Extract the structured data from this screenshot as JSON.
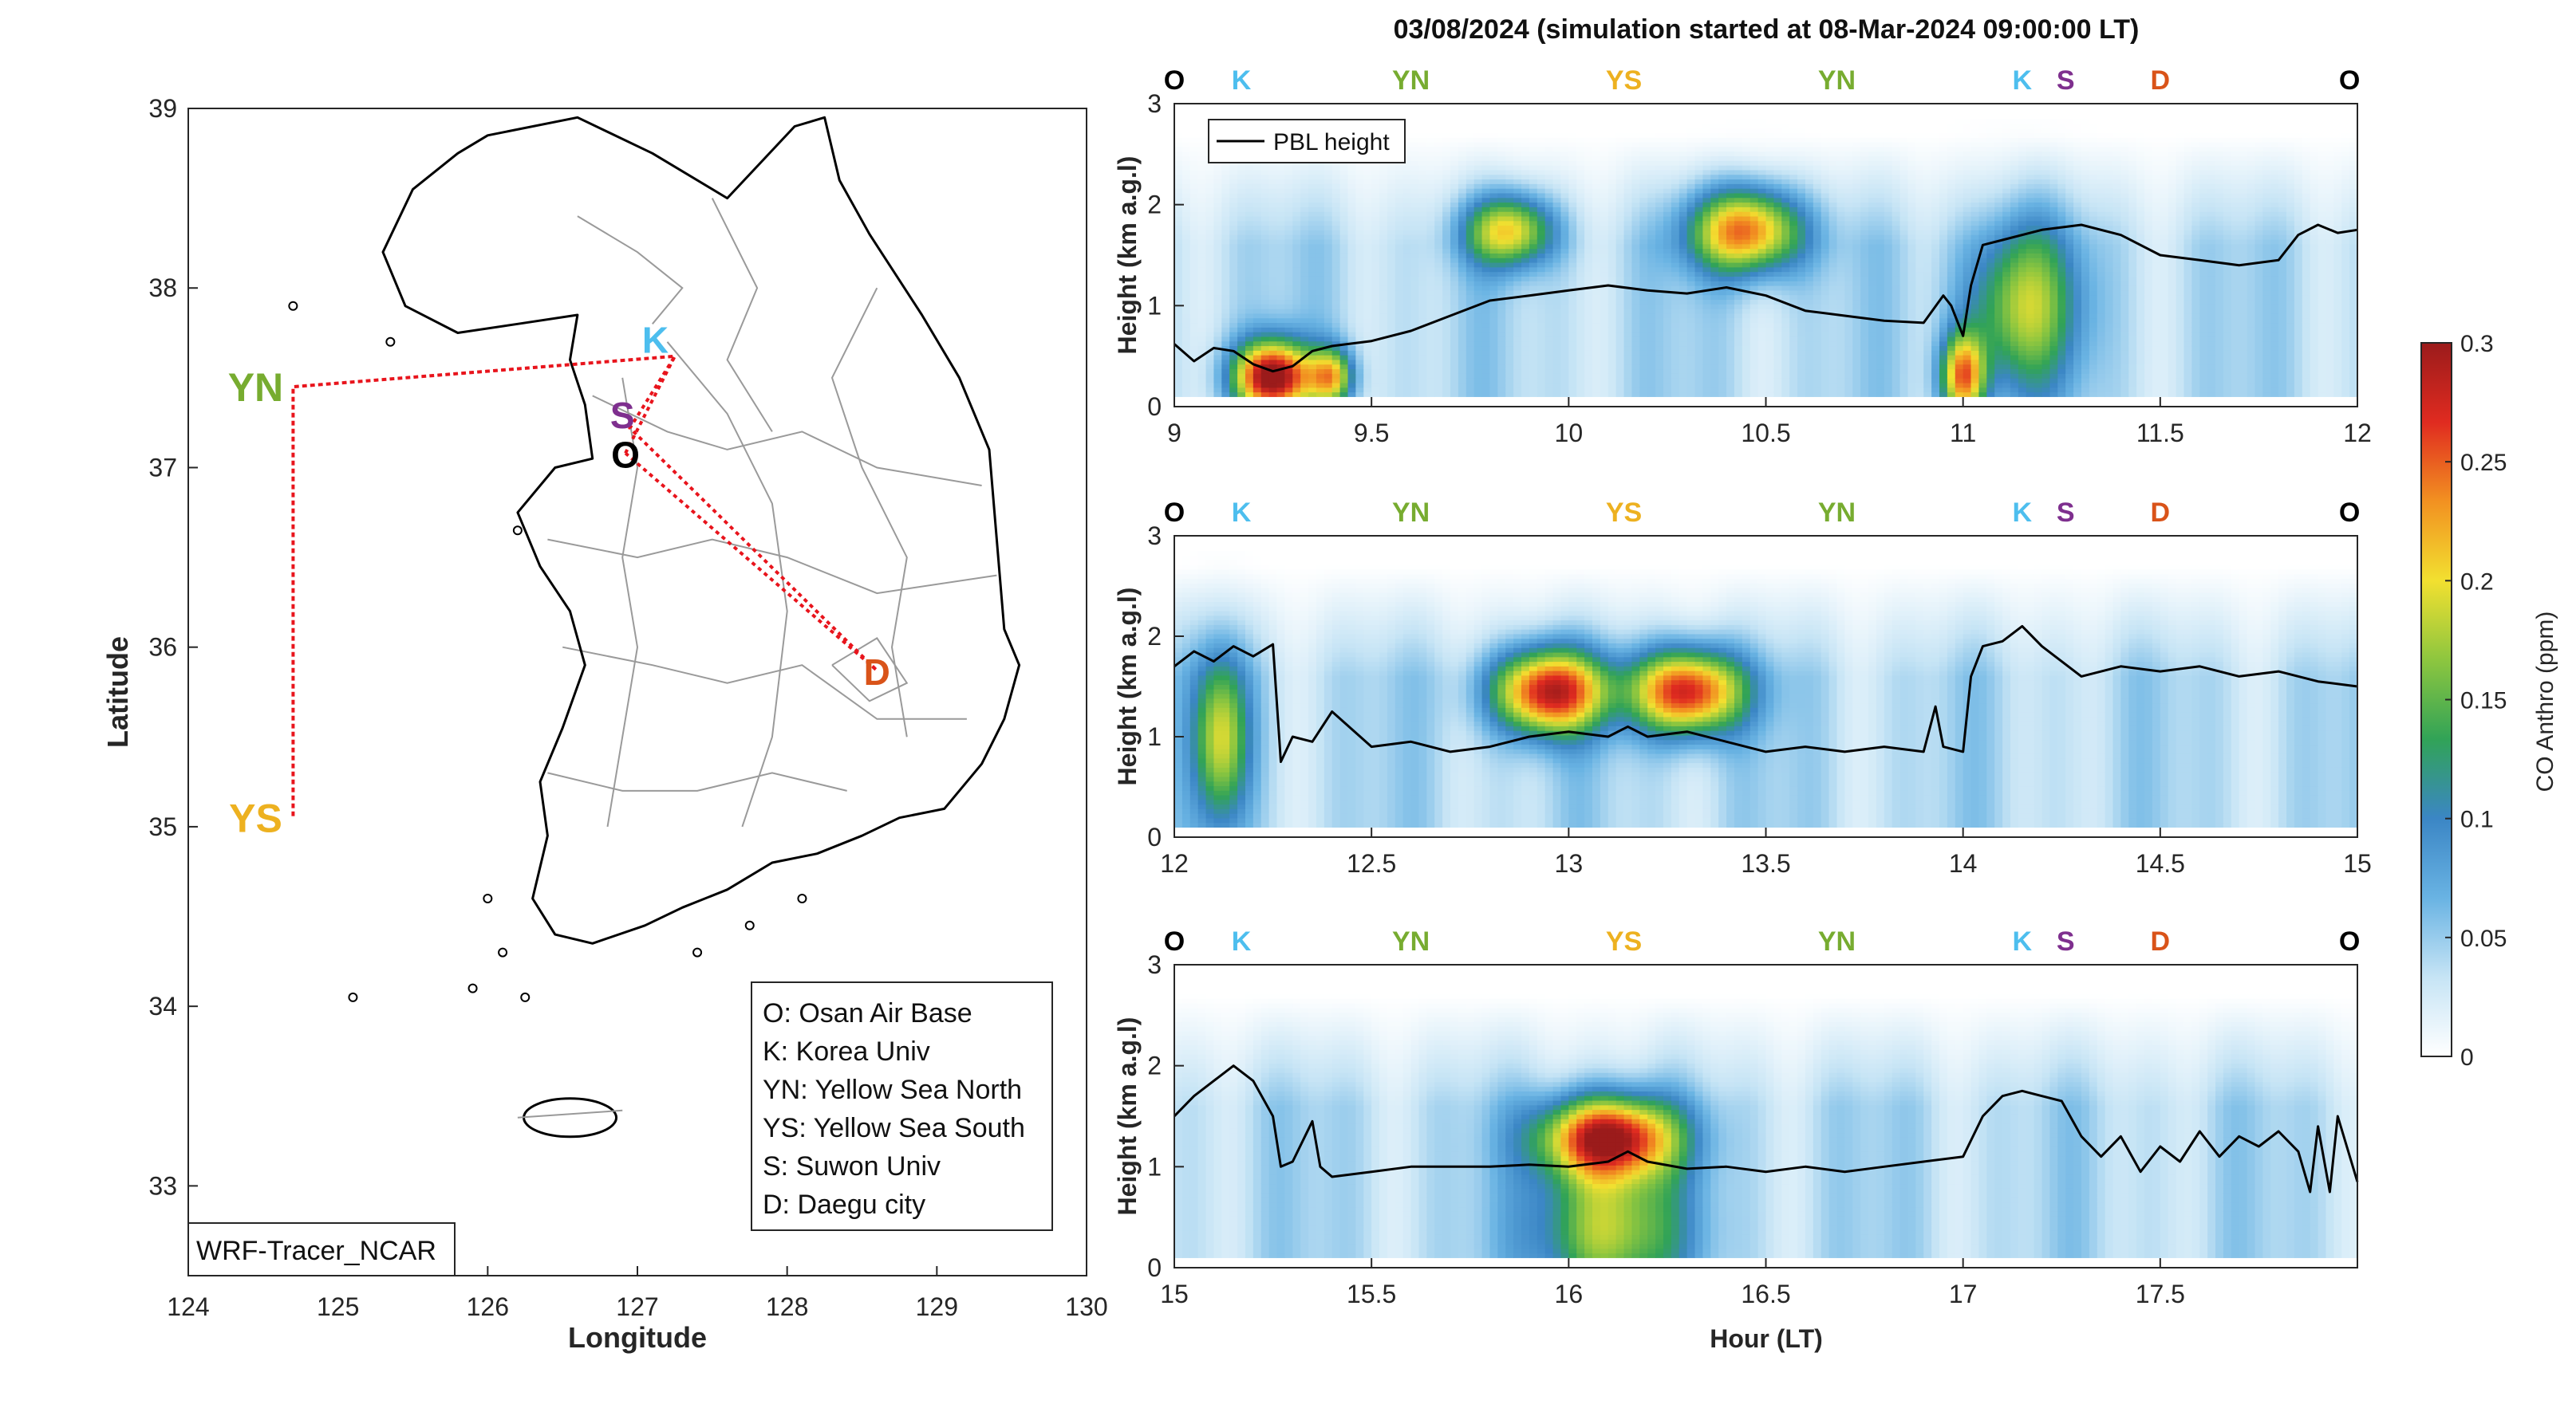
{
  "figure": {
    "title": "03/08/2024 (simulation started at 08-Mar-2024 09:00:00 LT)",
    "source_label": "WRF-Tracer_NCAR"
  },
  "colors": {
    "O": "#000000",
    "K": "#4DBEEE",
    "S": "#7E2F8E",
    "YN": "#77AC30",
    "YS": "#EDB120",
    "D": "#D95319",
    "route": "#e8141c"
  },
  "map": {
    "xlabel": "Longitude",
    "ylabel": "Latitude",
    "xlim": [
      124,
      130
    ],
    "ylim": [
      32.5,
      39
    ],
    "xticks": [
      "124",
      "125",
      "126",
      "127",
      "128",
      "129",
      "130"
    ],
    "yticks": [
      "33",
      "34",
      "35",
      "36",
      "37",
      "38",
      "39"
    ],
    "sites": [
      {
        "code": "O",
        "lon": 126.92,
        "lat": 37.08,
        "label_lon": 126.92,
        "label_lat": 37.08
      },
      {
        "code": "K",
        "lon": 127.25,
        "lat": 37.62,
        "label_lon": 127.12,
        "label_lat": 37.72
      },
      {
        "code": "S",
        "lon": 126.95,
        "lat": 37.22,
        "label_lon": 126.9,
        "label_lat": 37.3
      },
      {
        "code": "YN",
        "lon": 124.7,
        "lat": 37.45,
        "label_lon": 124.45,
        "label_lat": 37.45
      },
      {
        "code": "YS",
        "lon": 124.7,
        "lat": 35.05,
        "label_lon": 124.45,
        "label_lat": 35.05
      },
      {
        "code": "D",
        "lon": 128.6,
        "lat": 35.87,
        "label_lon": 128.6,
        "label_lat": 35.87
      }
    ],
    "legend": [
      "O: Osan Air Base",
      "K: Korea Univ",
      "YN: Yellow Sea North",
      "YS: Yellow Sea South",
      "S: Suwon Univ",
      "D: Daegu city"
    ]
  },
  "chart_data": [
    {
      "type": "heatmap",
      "panel": "09-12 LT",
      "xlabel": "",
      "ylabel": "Height (km a.g.l)",
      "xlim": [
        9,
        12
      ],
      "ylim": [
        0,
        3
      ],
      "xticks": [
        "9",
        "9.5",
        "10",
        "10.5",
        "11",
        "11.5",
        "12"
      ],
      "yticks": [
        "0",
        "1",
        "2",
        "3"
      ],
      "legend": "PBL height",
      "site_markers": [
        {
          "code": "O",
          "x": 9.0
        },
        {
          "code": "K",
          "x": 9.17
        },
        {
          "code": "YN",
          "x": 9.6
        },
        {
          "code": "YS",
          "x": 10.14
        },
        {
          "code": "YN",
          "x": 10.68
        },
        {
          "code": "K",
          "x": 11.15
        },
        {
          "code": "S",
          "x": 11.26
        },
        {
          "code": "D",
          "x": 11.5
        },
        {
          "code": "O",
          "x": 11.98
        }
      ],
      "pbl_height": {
        "x": [
          9.0,
          9.05,
          9.1,
          9.15,
          9.2,
          9.25,
          9.3,
          9.35,
          9.4,
          9.5,
          9.6,
          9.7,
          9.8,
          9.9,
          10.0,
          10.1,
          10.2,
          10.3,
          10.4,
          10.5,
          10.6,
          10.7,
          10.8,
          10.9,
          10.95,
          10.97,
          11.0,
          11.02,
          11.05,
          11.1,
          11.2,
          11.3,
          11.4,
          11.5,
          11.6,
          11.7,
          11.8,
          11.85,
          11.9,
          11.95,
          12.0
        ],
        "y": [
          0.62,
          0.45,
          0.58,
          0.55,
          0.42,
          0.35,
          0.4,
          0.55,
          0.6,
          0.65,
          0.75,
          0.9,
          1.05,
          1.1,
          1.15,
          1.2,
          1.15,
          1.12,
          1.18,
          1.1,
          0.95,
          0.9,
          0.85,
          0.83,
          1.1,
          1.0,
          0.7,
          1.2,
          1.6,
          1.65,
          1.75,
          1.8,
          1.7,
          1.5,
          1.45,
          1.4,
          1.45,
          1.7,
          1.8,
          1.72,
          1.75
        ]
      },
      "plumes": [
        {
          "x": 9.25,
          "z": 0.3,
          "sx": 0.07,
          "sz": 0.25,
          "co": 0.28
        },
        {
          "x": 9.4,
          "z": 0.3,
          "sx": 0.04,
          "sz": 0.2,
          "co": 0.16
        },
        {
          "x": 9.85,
          "z": 1.75,
          "sx": 0.08,
          "sz": 0.25,
          "co": 0.17
        },
        {
          "x": 10.45,
          "z": 1.75,
          "sx": 0.1,
          "sz": 0.3,
          "co": 0.22
        },
        {
          "x": 11.0,
          "z": 0.3,
          "sx": 0.04,
          "sz": 0.3,
          "co": 0.2
        },
        {
          "x": 11.15,
          "z": 1.0,
          "sx": 0.1,
          "sz": 0.6,
          "co": 0.14
        }
      ]
    },
    {
      "type": "heatmap",
      "panel": "12-15 LT",
      "xlabel": "",
      "ylabel": "Height (km a.g.l)",
      "xlim": [
        12,
        15
      ],
      "ylim": [
        0,
        3
      ],
      "xticks": [
        "12",
        "12.5",
        "13",
        "13.5",
        "14",
        "14.5",
        "15"
      ],
      "yticks": [
        "0",
        "1",
        "2",
        "3"
      ],
      "site_markers": [
        {
          "code": "O",
          "x": 12.0
        },
        {
          "code": "K",
          "x": 12.17
        },
        {
          "code": "YN",
          "x": 12.6
        },
        {
          "code": "YS",
          "x": 13.14
        },
        {
          "code": "YN",
          "x": 13.68
        },
        {
          "code": "K",
          "x": 14.15
        },
        {
          "code": "S",
          "x": 14.26
        },
        {
          "code": "D",
          "x": 14.5
        },
        {
          "code": "O",
          "x": 14.98
        }
      ],
      "pbl_height": {
        "x": [
          12.0,
          12.05,
          12.1,
          12.15,
          12.2,
          12.25,
          12.27,
          12.3,
          12.35,
          12.4,
          12.5,
          12.6,
          12.7,
          12.8,
          12.9,
          13.0,
          13.1,
          13.15,
          13.2,
          13.3,
          13.4,
          13.5,
          13.6,
          13.7,
          13.8,
          13.9,
          13.93,
          13.95,
          14.0,
          14.02,
          14.05,
          14.1,
          14.15,
          14.2,
          14.3,
          14.4,
          14.5,
          14.6,
          14.7,
          14.8,
          14.9,
          15.0
        ],
        "y": [
          1.7,
          1.85,
          1.75,
          1.9,
          1.8,
          1.92,
          0.75,
          1.0,
          0.95,
          1.25,
          0.9,
          0.95,
          0.85,
          0.9,
          1.0,
          1.05,
          1.0,
          1.1,
          1.0,
          1.05,
          0.95,
          0.85,
          0.9,
          0.85,
          0.9,
          0.85,
          1.3,
          0.9,
          0.85,
          1.6,
          1.9,
          1.95,
          2.1,
          1.9,
          1.6,
          1.7,
          1.65,
          1.7,
          1.6,
          1.65,
          1.55,
          1.5
        ]
      },
      "plumes": [
        {
          "x": 12.12,
          "z": 1.0,
          "sx": 0.05,
          "sz": 0.6,
          "co": 0.15
        },
        {
          "x": 12.95,
          "z": 1.45,
          "sx": 0.1,
          "sz": 0.3,
          "co": 0.25
        },
        {
          "x": 13.3,
          "z": 1.45,
          "sx": 0.1,
          "sz": 0.3,
          "co": 0.25
        }
      ]
    },
    {
      "type": "heatmap",
      "panel": "15-18 LT",
      "xlabel": "Hour (LT)",
      "ylabel": "Height (km a.g.l)",
      "xlim": [
        15,
        18
      ],
      "ylim": [
        0,
        3
      ],
      "xticks": [
        "15",
        "15.5",
        "16",
        "16.5",
        "17",
        "17.5"
      ],
      "yticks": [
        "0",
        "1",
        "2",
        "3"
      ],
      "site_markers": [
        {
          "code": "O",
          "x": 15.0
        },
        {
          "code": "K",
          "x": 15.17
        },
        {
          "code": "YN",
          "x": 15.6
        },
        {
          "code": "YS",
          "x": 16.14
        },
        {
          "code": "YN",
          "x": 16.68
        },
        {
          "code": "K",
          "x": 17.15
        },
        {
          "code": "S",
          "x": 17.26
        },
        {
          "code": "D",
          "x": 17.5
        },
        {
          "code": "O",
          "x": 17.98
        }
      ],
      "pbl_height": {
        "x": [
          15.0,
          15.05,
          15.1,
          15.15,
          15.2,
          15.25,
          15.27,
          15.3,
          15.35,
          15.37,
          15.4,
          15.5,
          15.6,
          15.7,
          15.8,
          15.9,
          16.0,
          16.1,
          16.15,
          16.2,
          16.3,
          16.4,
          16.5,
          16.6,
          16.7,
          16.8,
          16.9,
          17.0,
          17.05,
          17.1,
          17.15,
          17.2,
          17.25,
          17.3,
          17.35,
          17.4,
          17.45,
          17.5,
          17.55,
          17.6,
          17.65,
          17.7,
          17.75,
          17.8,
          17.85,
          17.88,
          17.9,
          17.93,
          17.95,
          18.0
        ],
        "y": [
          1.5,
          1.7,
          1.85,
          2.0,
          1.85,
          1.5,
          1.0,
          1.05,
          1.45,
          1.0,
          0.9,
          0.95,
          1.0,
          1.0,
          1.0,
          1.02,
          1.0,
          1.05,
          1.15,
          1.05,
          0.98,
          1.0,
          0.95,
          1.0,
          0.95,
          1.0,
          1.05,
          1.1,
          1.5,
          1.7,
          1.75,
          1.7,
          1.65,
          1.3,
          1.1,
          1.3,
          0.95,
          1.2,
          1.05,
          1.35,
          1.1,
          1.3,
          1.2,
          1.35,
          1.15,
          0.75,
          1.4,
          0.75,
          1.5,
          0.85
        ]
      },
      "plumes": [
        {
          "x": 16.1,
          "z": 1.3,
          "sx": 0.12,
          "sz": 0.28,
          "co": 0.25
        },
        {
          "x": 16.1,
          "z": 0.4,
          "sx": 0.13,
          "sz": 0.55,
          "co": 0.15
        }
      ]
    }
  ],
  "colorbar": {
    "label": "CO Anthro (ppm)",
    "ticks": [
      "0",
      "0.05",
      "0.1",
      "0.15",
      "0.2",
      "0.25",
      "0.3"
    ],
    "range": [
      0,
      0.3
    ],
    "stops": [
      "#ffffff",
      "#c6e4f5",
      "#69b3e3",
      "#3b86c5",
      "#31a357",
      "#8dc63f",
      "#f2e030",
      "#f29121",
      "#e02b20",
      "#9b1b1b"
    ]
  }
}
